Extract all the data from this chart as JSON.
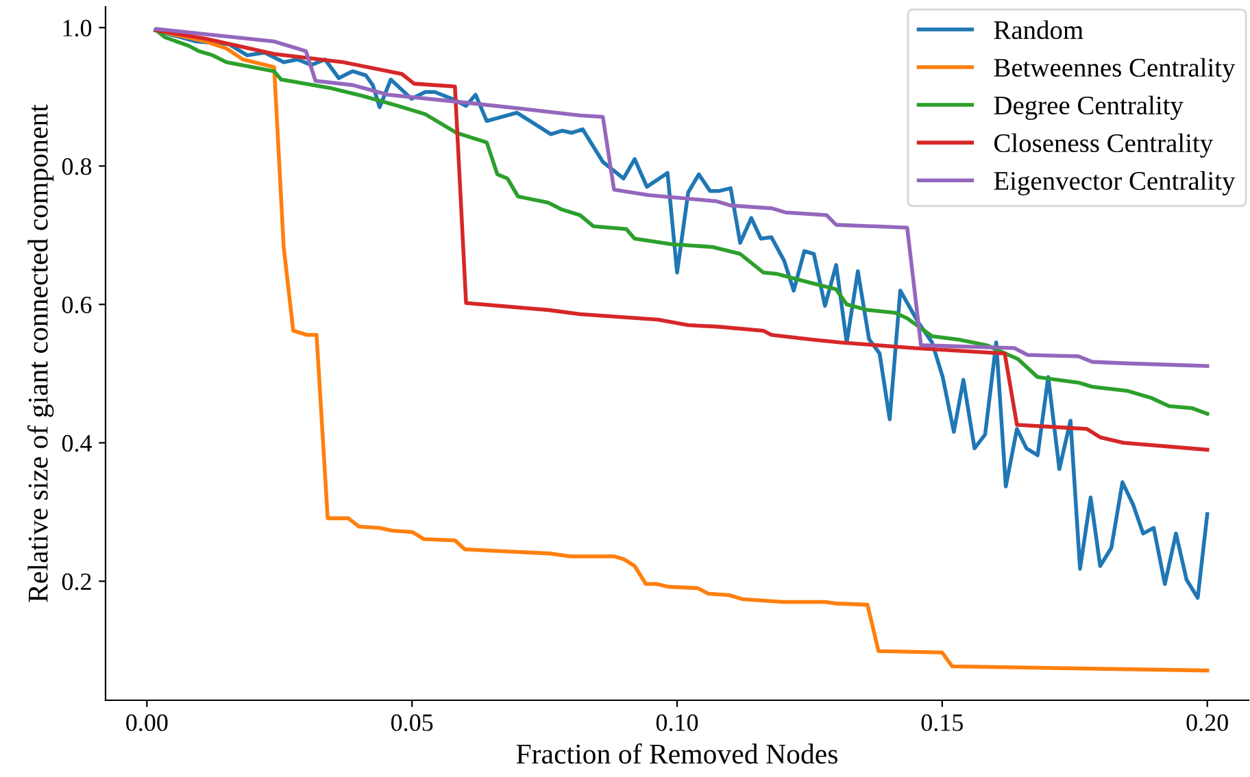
{
  "chart_data": {
    "type": "line",
    "xlabel": "Fraction of Removed Nodes",
    "ylabel": "Relative size of giant connected component",
    "xlim": [
      -0.0078,
      0.2078
    ],
    "ylim": [
      0.028,
      1.03
    ],
    "xticks": [
      {
        "value": 0,
        "label": "0.00"
      },
      {
        "value": 0.05,
        "label": "0.05"
      },
      {
        "value": 0.1,
        "label": "0.10"
      },
      {
        "value": 0.15,
        "label": "0.15"
      },
      {
        "value": 0.2,
        "label": "0.20"
      }
    ],
    "yticks": [
      {
        "value": 0.2,
        "label": "0.2"
      },
      {
        "value": 0.4,
        "label": "0.4"
      },
      {
        "value": 0.6,
        "label": "0.6"
      },
      {
        "value": 0.8,
        "label": "0.8"
      },
      {
        "value": 1.0,
        "label": "1.0"
      }
    ],
    "grid": false,
    "legend": "top right",
    "line_style": "solid",
    "marker": "none",
    "series": [
      {
        "name": "Random",
        "color": "#1f77b4",
        "x": [
          0.0016,
          0.0093,
          0.0155,
          0.0189,
          0.0222,
          0.0258,
          0.0284,
          0.031,
          0.0336,
          0.0362,
          0.0388,
          0.0413,
          0.0426,
          0.0439,
          0.046,
          0.0499,
          0.0525,
          0.0543,
          0.0576,
          0.0602,
          0.062,
          0.0641,
          0.0698,
          0.0731,
          0.0762,
          0.0783,
          0.0801,
          0.0822,
          0.086,
          0.0873,
          0.0899,
          0.092,
          0.0943,
          0.0982,
          0.1,
          0.1021,
          0.1041,
          0.1062,
          0.108,
          0.1101,
          0.1119,
          0.114,
          0.1158,
          0.1178,
          0.1202,
          0.122,
          0.124,
          0.1258,
          0.1279,
          0.13,
          0.132,
          0.1341,
          0.1362,
          0.1382,
          0.1401,
          0.1421,
          0.1455,
          0.1481,
          0.1501,
          0.1522,
          0.154,
          0.1561,
          0.1581,
          0.1602,
          0.162,
          0.1641,
          0.1659,
          0.168,
          0.17,
          0.1721,
          0.1742,
          0.176,
          0.178,
          0.1798,
          0.1819,
          0.184,
          0.186,
          0.1879,
          0.1899,
          0.192,
          0.1941,
          0.1961,
          0.1982,
          0.2
        ],
        "values": [
          0.996,
          0.98,
          0.976,
          0.96,
          0.964,
          0.95,
          0.954,
          0.946,
          0.954,
          0.927,
          0.937,
          0.931,
          0.917,
          0.885,
          0.925,
          0.897,
          0.907,
          0.907,
          0.897,
          0.887,
          0.903,
          0.865,
          0.877,
          0.861,
          0.846,
          0.851,
          0.848,
          0.853,
          0.806,
          0.798,
          0.782,
          0.81,
          0.77,
          0.79,
          0.646,
          0.762,
          0.788,
          0.764,
          0.764,
          0.768,
          0.689,
          0.725,
          0.695,
          0.697,
          0.663,
          0.62,
          0.677,
          0.673,
          0.598,
          0.657,
          0.545,
          0.648,
          0.55,
          0.529,
          0.434,
          0.62,
          0.574,
          0.545,
          0.495,
          0.416,
          0.491,
          0.392,
          0.412,
          0.545,
          0.337,
          0.42,
          0.392,
          0.382,
          0.495,
          0.362,
          0.432,
          0.218,
          0.321,
          0.222,
          0.248,
          0.343,
          0.311,
          0.269,
          0.277,
          0.196,
          0.269,
          0.202,
          0.176,
          0.297
        ]
      },
      {
        "name": "Betweennes Centrality",
        "color": "#ff7f0e",
        "x": [
          0.0018,
          0.0111,
          0.015,
          0.0181,
          0.024,
          0.0258,
          0.0276,
          0.0302,
          0.032,
          0.0341,
          0.038,
          0.04,
          0.0439,
          0.0463,
          0.0501,
          0.0522,
          0.0581,
          0.06,
          0.0762,
          0.0798,
          0.0881,
          0.0899,
          0.092,
          0.0941,
          0.0961,
          0.0984,
          0.1039,
          0.1059,
          0.1098,
          0.1124,
          0.1199,
          0.1279,
          0.1297,
          0.1359,
          0.138,
          0.15,
          0.1519,
          0.2
        ],
        "values": [
          0.996,
          0.98,
          0.97,
          0.954,
          0.943,
          0.683,
          0.562,
          0.556,
          0.556,
          0.291,
          0.291,
          0.279,
          0.277,
          0.273,
          0.271,
          0.261,
          0.259,
          0.246,
          0.24,
          0.236,
          0.236,
          0.232,
          0.222,
          0.196,
          0.196,
          0.192,
          0.19,
          0.182,
          0.18,
          0.174,
          0.17,
          0.17,
          0.168,
          0.166,
          0.099,
          0.097,
          0.077,
          0.071
        ]
      },
      {
        "name": "Degree Centrality",
        "color": "#2ca02c",
        "x": [
          0.0018,
          0.0034,
          0.0078,
          0.0098,
          0.0124,
          0.015,
          0.024,
          0.0253,
          0.0344,
          0.0408,
          0.0473,
          0.0525,
          0.0584,
          0.0641,
          0.0661,
          0.068,
          0.07,
          0.0757,
          0.0783,
          0.0817,
          0.0842,
          0.0904,
          0.092,
          0.099,
          0.1067,
          0.1119,
          0.1163,
          0.1189,
          0.1248,
          0.13,
          0.132,
          0.1359,
          0.1411,
          0.1434,
          0.1481,
          0.1532,
          0.1584,
          0.1643,
          0.168,
          0.1757,
          0.1783,
          0.185,
          0.1894,
          0.1928,
          0.1972,
          0.2
        ],
        "values": [
          0.996,
          0.986,
          0.974,
          0.966,
          0.96,
          0.95,
          0.937,
          0.925,
          0.913,
          0.901,
          0.887,
          0.875,
          0.848,
          0.834,
          0.788,
          0.782,
          0.756,
          0.747,
          0.737,
          0.729,
          0.713,
          0.709,
          0.695,
          0.687,
          0.683,
          0.673,
          0.646,
          0.644,
          0.632,
          0.622,
          0.6,
          0.592,
          0.588,
          0.58,
          0.554,
          0.549,
          0.541,
          0.521,
          0.495,
          0.487,
          0.481,
          0.475,
          0.465,
          0.453,
          0.45,
          0.442
        ]
      },
      {
        "name": "Closeness Centrality",
        "color": "#d62728",
        "x": [
          0.0018,
          0.0111,
          0.024,
          0.037,
          0.0481,
          0.0504,
          0.0581,
          0.0602,
          0.0757,
          0.0817,
          0.0964,
          0.1021,
          0.1075,
          0.1163,
          0.1178,
          0.1256,
          0.1307,
          0.1447,
          0.1618,
          0.1641,
          0.1773,
          0.1798,
          0.1842,
          0.2
        ],
        "values": [
          0.996,
          0.984,
          0.962,
          0.95,
          0.933,
          0.919,
          0.915,
          0.602,
          0.592,
          0.586,
          0.578,
          0.57,
          0.568,
          0.562,
          0.556,
          0.549,
          0.545,
          0.537,
          0.529,
          0.426,
          0.42,
          0.408,
          0.4,
          0.39
        ]
      },
      {
        "name": "Eigenvector Centrality",
        "color": "#9467bd",
        "x": [
          0.0018,
          0.024,
          0.03,
          0.0318,
          0.0388,
          0.0455,
          0.0584,
          0.0705,
          0.0817,
          0.086,
          0.0881,
          0.0946,
          0.1075,
          0.1101,
          0.1178,
          0.1204,
          0.1282,
          0.13,
          0.1434,
          0.146,
          0.1636,
          0.1661,
          0.1757,
          0.1783,
          0.1842,
          0.2
        ],
        "values": [
          0.998,
          0.98,
          0.966,
          0.923,
          0.917,
          0.903,
          0.893,
          0.883,
          0.873,
          0.871,
          0.766,
          0.758,
          0.749,
          0.743,
          0.739,
          0.733,
          0.729,
          0.715,
          0.711,
          0.541,
          0.537,
          0.527,
          0.525,
          0.517,
          0.515,
          0.511
        ]
      }
    ]
  }
}
